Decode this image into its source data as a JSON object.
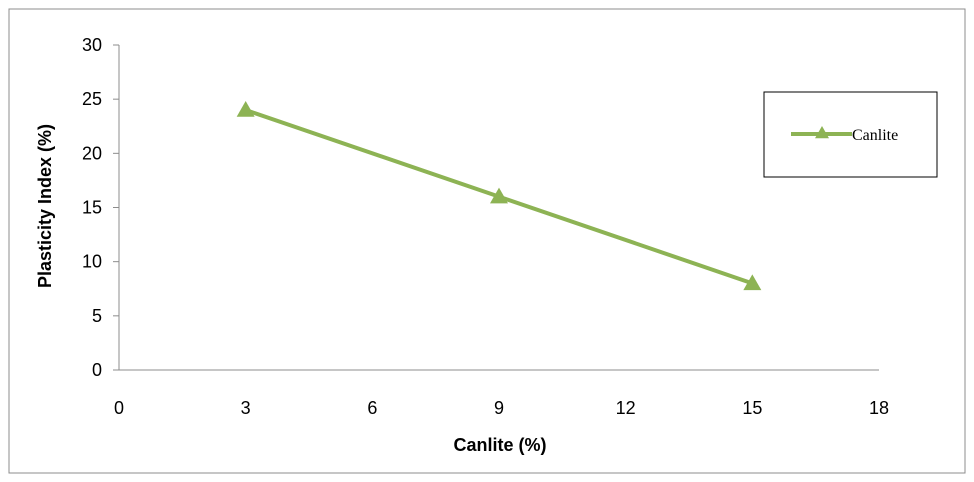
{
  "chart_data": {
    "type": "line",
    "xlabel": "Canlite (%)",
    "ylabel": "Plasticity Index (%)",
    "xlim": [
      0,
      18
    ],
    "ylim": [
      0,
      30
    ],
    "x_ticks": [
      "0",
      "3",
      "6",
      "9",
      "12",
      "15",
      "18"
    ],
    "y_ticks": [
      "0",
      "5",
      "10",
      "15",
      "20",
      "25",
      "30"
    ],
    "grid": false,
    "legend": "right",
    "series": [
      {
        "name": "Canlite",
        "color": "#8DB354",
        "marker": "triangle",
        "x": [
          3,
          9,
          15
        ],
        "y": [
          24,
          16,
          8
        ]
      }
    ]
  }
}
